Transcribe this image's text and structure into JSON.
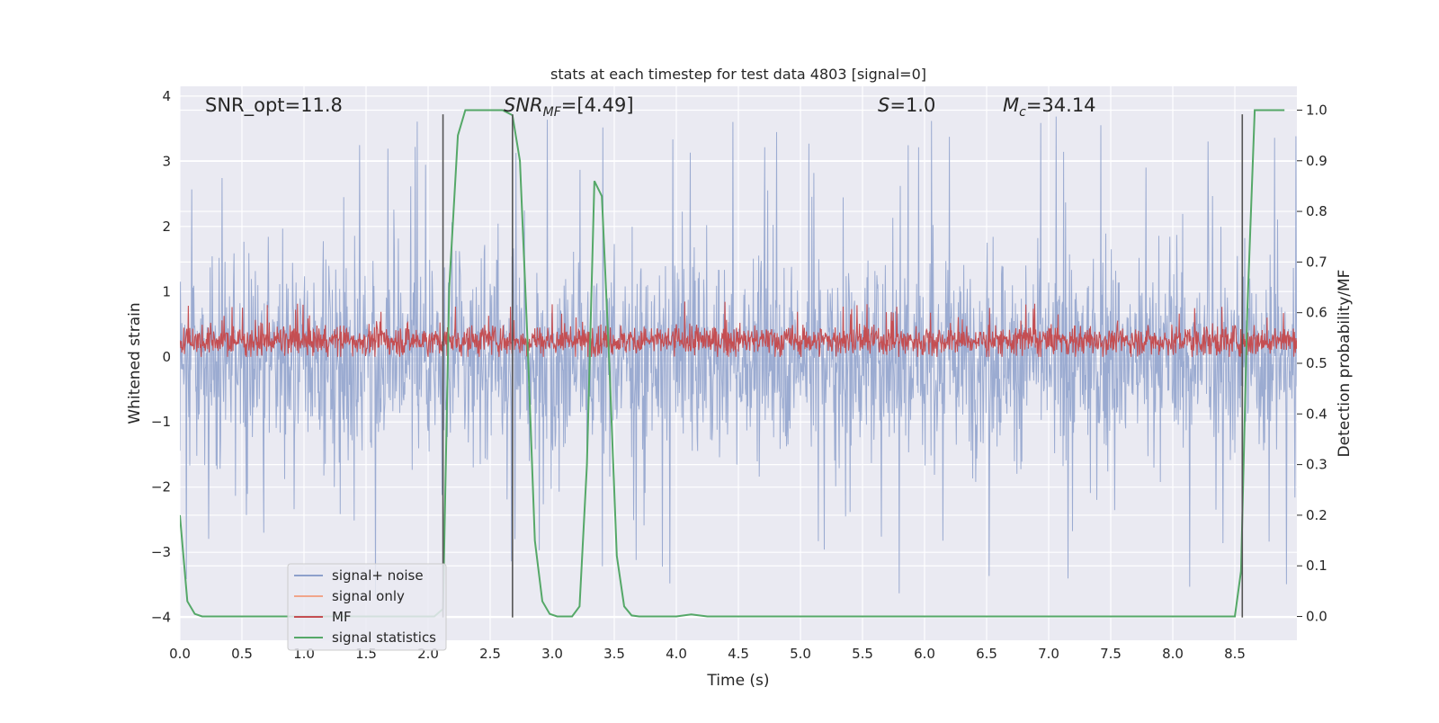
{
  "chart_data": {
    "type": "line",
    "title": "stats at each timestep for test data 4803 [signal=0]",
    "xlabel": "Time (s)",
    "ylabel": "Whitened strain",
    "y2label": "Detection probability/MF",
    "xlim": [
      0.0,
      9.0
    ],
    "ylim": [
      -4.35,
      4.15
    ],
    "y2lim": [
      -0.047,
      1.047
    ],
    "grid": true,
    "background": "#eaeaf2",
    "legend_position": "lower-left",
    "x_ticks": [
      "0.0",
      "0.5",
      "1.0",
      "1.5",
      "2.0",
      "2.5",
      "3.0",
      "3.5",
      "4.0",
      "4.5",
      "5.0",
      "5.5",
      "6.0",
      "6.5",
      "7.0",
      "7.5",
      "8.0",
      "8.5"
    ],
    "y_ticks": [
      "4",
      "3",
      "2",
      "1",
      "0",
      "−1",
      "−2",
      "−3",
      "−4"
    ],
    "y2_ticks": [
      "1.0",
      "0.9",
      "0.8",
      "0.7",
      "0.6",
      "0.5",
      "0.4",
      "0.3",
      "0.2",
      "0.1",
      "0.0"
    ],
    "annotations": {
      "snr_opt": "SNR_opt=11.8",
      "snr_mf_main": "SNR",
      "snr_mf_sub": "MF",
      "snr_mf_value": "=[4.49]",
      "s_sym": "S",
      "s_value": "=1.0",
      "mc_sym": "M",
      "mc_sub": "c",
      "mc_value": "=34.14"
    },
    "vlines": [
      2.12,
      2.68,
      8.56
    ],
    "vline_y_range": [
      -4.0,
      3.72
    ],
    "series": [
      {
        "name": "signal+ noise",
        "color": "#8da0cb",
        "axis": "left",
        "envelope": {
          "core_low": -1.7,
          "core_high": 1.4,
          "spike_max": 3.7,
          "spike_min": -4.0,
          "dt": 0.004
        }
      },
      {
        "name": "signal only",
        "color": "#f1a58a",
        "axis": "left",
        "values": []
      },
      {
        "name": "MF",
        "color": "#c44e52",
        "axis": "left",
        "envelope": {
          "center": 0.25,
          "low": 0.0,
          "high": 0.85,
          "dt": 0.004
        }
      },
      {
        "name": "signal statistics",
        "color": "#55a868",
        "axis": "right",
        "x": [
          0.0,
          0.06,
          0.12,
          0.18,
          0.5,
          1.0,
          1.5,
          1.9,
          2.05,
          2.12,
          2.17,
          2.24,
          2.3,
          2.6,
          2.68,
          2.74,
          2.8,
          2.86,
          2.92,
          2.98,
          3.04,
          3.1,
          3.16,
          3.22,
          3.28,
          3.34,
          3.4,
          3.46,
          3.52,
          3.58,
          3.64,
          3.7,
          4.0,
          4.12,
          4.25,
          5.0,
          6.0,
          7.0,
          8.0,
          8.5,
          8.55,
          8.6,
          8.66,
          8.9
        ],
        "y": [
          0.2,
          0.03,
          0.005,
          0.0,
          0.0,
          0.0,
          0.0,
          0.0,
          0.0,
          0.015,
          0.65,
          0.95,
          1.0,
          1.0,
          0.99,
          0.9,
          0.55,
          0.15,
          0.03,
          0.005,
          0.0,
          0.0,
          0.0,
          0.02,
          0.3,
          0.86,
          0.83,
          0.5,
          0.12,
          0.02,
          0.002,
          0.0,
          0.0,
          0.004,
          0.0,
          0.0,
          0.0,
          0.0,
          0.0,
          0.0,
          0.09,
          0.6,
          1.0,
          1.0
        ]
      }
    ]
  }
}
